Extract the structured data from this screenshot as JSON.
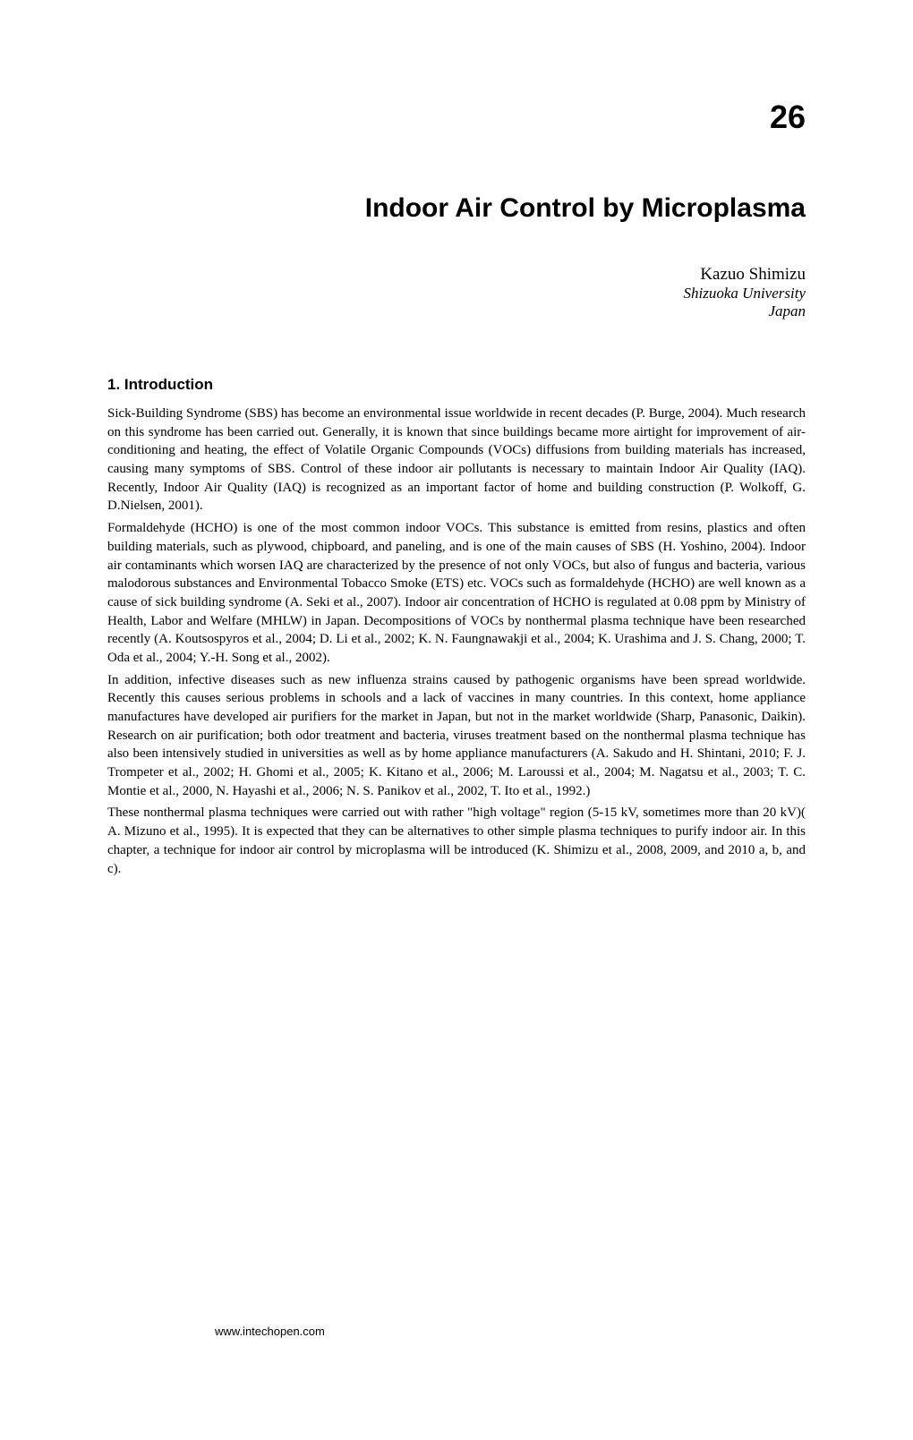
{
  "chapter": {
    "number": "26",
    "number_fontsize": 36,
    "title": "Indoor Air Control by Microplasma",
    "title_fontsize": 30
  },
  "author": {
    "name": "Kazuo Shimizu",
    "name_fontsize": 19,
    "affiliation": "Shizuoka University",
    "affiliation_fontsize": 17,
    "country": "Japan",
    "country_fontsize": 17
  },
  "section": {
    "heading": "1. Introduction",
    "heading_fontsize": 17
  },
  "paragraphs": {
    "p1": "Sick-Building Syndrome (SBS) has become an environmental issue worldwide in recent decades (P. Burge, 2004). Much research on this syndrome has been carried out. Generally, it is known that since buildings became more airtight for improvement of air-conditioning and heating, the effect of Volatile Organic Compounds (VOCs) diffusions from building materials has increased, causing many symptoms of SBS. Control of these indoor air pollutants is necessary to maintain Indoor Air Quality (IAQ). Recently, Indoor Air Quality (IAQ) is recognized as an important factor of home and building construction (P. Wolkoff, G. D.Nielsen, 2001).",
    "p2": "Formaldehyde (HCHO) is one of the most common indoor VOCs. This substance is emitted from resins, plastics and often building materials, such as plywood, chipboard, and paneling, and is one of the main causes of SBS (H. Yoshino, 2004). Indoor air contaminants which worsen IAQ are characterized by the presence of not only VOCs, but also of fungus and bacteria, various malodorous substances and Environmental Tobacco Smoke (ETS) etc. VOCs such as formaldehyde (HCHO) are well known as a cause of sick building syndrome (A. Seki et al., 2007). Indoor air concentration of HCHO is regulated at 0.08 ppm by Ministry of Health, Labor and Welfare (MHLW) in Japan. Decompositions of VOCs by nonthermal plasma technique have been researched recently (A. Koutsospyros et al., 2004; D. Li et al., 2002; K. N. Faungnawakji et al., 2004; K. Urashima and J. S. Chang, 2000; T. Oda et al., 2004; Y.-H. Song et al., 2002).",
    "p3": "In addition, infective diseases such as new influenza strains caused by pathogenic organisms have been spread worldwide. Recently this causes serious problems in schools and a lack of vaccines in many countries. In this context, home appliance manufactures have developed air purifiers for the market in Japan, but not in the market worldwide (Sharp, Panasonic, Daikin). Research on air purification; both odor treatment and bacteria, viruses treatment based on the nonthermal plasma technique has also been intensively studied in universities as well as by home appliance manufacturers (A. Sakudo and H. Shintani, 2010; F. J. Trompeter et al., 2002; H. Ghomi et al., 2005; K. Kitano et al., 2006; M. Laroussi et al., 2004; M. Nagatsu et al., 2003; T. C. Montie et al., 2000, N. Hayashi et al., 2006; N. S. Panikov et al., 2002, T. Ito et al., 1992.)",
    "p4": "These nonthermal plasma techniques were carried out with rather \"high voltage\" region (5-15 kV, sometimes more than 20 kV)( A. Mizuno et al., 1995). It is expected that they can be alternatives to other simple plasma techniques to purify indoor air. In this chapter, a technique for indoor air control by microplasma will be introduced (K. Shimizu et al., 2008, 2009, and 2010 a, b, and c).",
    "body_fontsize": 15,
    "body_lineheight": 1.38
  },
  "footer": {
    "text": "www.intechopen.com",
    "fontsize": 13,
    "color": "#000000"
  },
  "colors": {
    "background": "#ffffff",
    "text": "#000000"
  }
}
